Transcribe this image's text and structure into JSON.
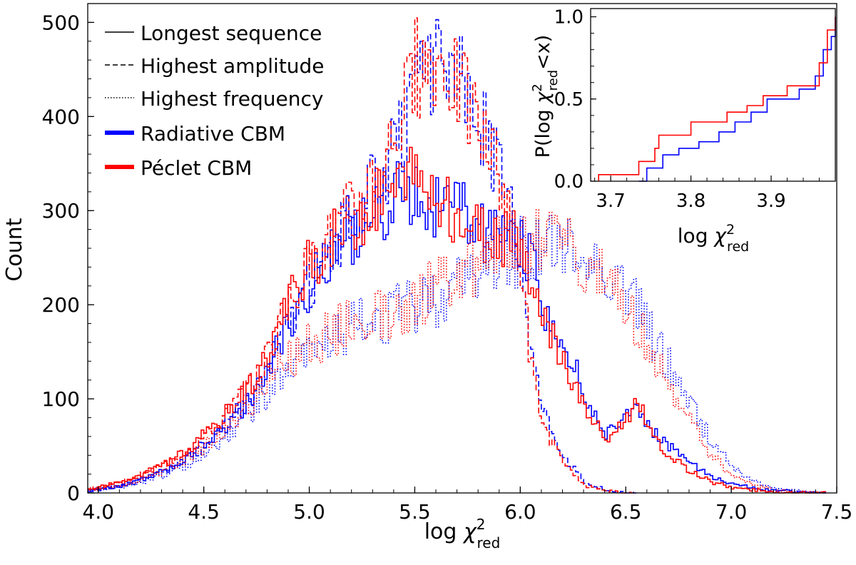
{
  "chart_data": {
    "main": {
      "type": "histogram-step",
      "xlabel": "log χ²_red",
      "xlabel_base": "log ",
      "xlabel_chi": "χ",
      "xlabel_sup": "2",
      "xlabel_sub": "red",
      "ylabel": "Count",
      "xlim": [
        3.95,
        7.5
      ],
      "ylim": [
        0,
        520
      ],
      "xticks": [
        "4.0",
        "4.5",
        "5.0",
        "5.5",
        "6.0",
        "6.5",
        "7.0",
        "7.5"
      ],
      "xtick_values": [
        4.0,
        4.5,
        5.0,
        5.5,
        6.0,
        6.5,
        7.0,
        7.5
      ],
      "yticks": [
        "0",
        "100",
        "200",
        "300",
        "400",
        "500"
      ],
      "ytick_values": [
        0,
        100,
        200,
        300,
        400,
        500
      ],
      "legend": {
        "placement": "top-left",
        "entries": [
          {
            "label": "Longest sequence",
            "style": "solid",
            "color": "#000000"
          },
          {
            "label": "Highest amplitude",
            "style": "dashed",
            "color": "#000000"
          },
          {
            "label": "Highest frequency",
            "style": "dotted",
            "color": "#000000"
          },
          {
            "label": "Radiative CBM",
            "style": "thick",
            "color": "#0000ff"
          },
          {
            "label": "Péclet CBM",
            "style": "thick",
            "color": "#ff0000"
          }
        ]
      },
      "series": [
        {
          "name": "Longest sequence – Radiative CBM",
          "color": "#0000ff",
          "style": "solid",
          "x": [
            3.95,
            4.15,
            4.35,
            4.55,
            4.75,
            4.95,
            5.1,
            5.25,
            5.4,
            5.5,
            5.6,
            5.7,
            5.8,
            5.9,
            6.0,
            6.05,
            6.1,
            6.2,
            6.3,
            6.4,
            6.5,
            6.55,
            6.6,
            6.7,
            6.8,
            6.9,
            7.0,
            7.1,
            7.2,
            7.3,
            7.4
          ],
          "y": [
            2,
            10,
            28,
            60,
            110,
            205,
            250,
            285,
            315,
            320,
            305,
            300,
            295,
            280,
            270,
            240,
            200,
            160,
            105,
            60,
            85,
            95,
            70,
            50,
            30,
            18,
            10,
            5,
            3,
            1,
            0
          ]
        },
        {
          "name": "Longest sequence – Péclet CBM",
          "color": "#ff0000",
          "style": "solid",
          "x": [
            3.95,
            4.15,
            4.35,
            4.55,
            4.75,
            4.95,
            5.1,
            5.25,
            5.4,
            5.5,
            5.6,
            5.7,
            5.8,
            5.9,
            6.0,
            6.05,
            6.1,
            6.2,
            6.3,
            6.4,
            6.5,
            6.55,
            6.6,
            6.7,
            6.8,
            6.9,
            7.0,
            7.1,
            7.2,
            7.3,
            7.4
          ],
          "y": [
            4,
            14,
            35,
            70,
            125,
            230,
            270,
            300,
            325,
            330,
            315,
            290,
            280,
            270,
            265,
            230,
            185,
            140,
            90,
            55,
            80,
            100,
            65,
            40,
            22,
            12,
            6,
            3,
            1,
            0,
            0
          ]
        },
        {
          "name": "Highest amplitude – Radiative CBM",
          "color": "#0000ff",
          "style": "dashed",
          "x": [
            3.95,
            4.15,
            4.35,
            4.55,
            4.75,
            4.95,
            5.1,
            5.25,
            5.4,
            5.5,
            5.6,
            5.65,
            5.7,
            5.8,
            5.9,
            5.95,
            6.0,
            6.05,
            6.1,
            6.2,
            6.3,
            6.4,
            6.5
          ],
          "y": [
            2,
            10,
            28,
            60,
            112,
            205,
            260,
            310,
            360,
            420,
            455,
            460,
            440,
            400,
            340,
            290,
            250,
            150,
            90,
            40,
            12,
            3,
            0
          ]
        },
        {
          "name": "Highest amplitude – Péclet CBM",
          "color": "#ff0000",
          "style": "dashed",
          "x": [
            3.95,
            4.15,
            4.35,
            4.55,
            4.75,
            4.95,
            5.1,
            5.25,
            5.4,
            5.5,
            5.6,
            5.65,
            5.7,
            5.8,
            5.9,
            5.95,
            6.0,
            6.05,
            6.1,
            6.2,
            6.3,
            6.4,
            6.5
          ],
          "y": [
            4,
            14,
            35,
            70,
            125,
            225,
            275,
            320,
            380,
            450,
            465,
            455,
            430,
            390,
            330,
            280,
            240,
            130,
            75,
            30,
            8,
            2,
            0
          ]
        },
        {
          "name": "Highest frequency – Radiative CBM",
          "color": "#0000ff",
          "style": "dotted",
          "x": [
            3.95,
            4.15,
            4.35,
            4.55,
            4.75,
            4.95,
            5.1,
            5.25,
            5.4,
            5.5,
            5.6,
            5.7,
            5.8,
            5.9,
            6.0,
            6.1,
            6.2,
            6.3,
            6.4,
            6.5,
            6.6,
            6.7,
            6.8,
            6.9,
            7.0,
            7.1,
            7.2,
            7.3,
            7.4
          ],
          "y": [
            2,
            8,
            22,
            50,
            95,
            140,
            165,
            180,
            190,
            200,
            210,
            220,
            240,
            255,
            262,
            262,
            255,
            250,
            240,
            215,
            175,
            135,
            95,
            55,
            28,
            12,
            5,
            2,
            0
          ]
        },
        {
          "name": "Highest frequency – Péclet CBM",
          "color": "#ff0000",
          "style": "dotted",
          "x": [
            3.95,
            4.15,
            4.35,
            4.55,
            4.75,
            4.95,
            5.1,
            5.25,
            5.4,
            5.5,
            5.6,
            5.7,
            5.8,
            5.9,
            6.0,
            6.1,
            6.2,
            6.3,
            6.4,
            6.5,
            6.6,
            6.7,
            6.8,
            6.9,
            7.0,
            7.1,
            7.2,
            7.3,
            7.4
          ],
          "y": [
            3,
            10,
            28,
            58,
            105,
            155,
            170,
            185,
            195,
            205,
            220,
            230,
            250,
            265,
            270,
            270,
            262,
            255,
            235,
            200,
            160,
            115,
            75,
            40,
            18,
            8,
            3,
            1,
            0
          ]
        }
      ]
    },
    "inset": {
      "type": "cumulative-step",
      "xlabel": "log χ²_red",
      "xlabel_base": "log ",
      "xlabel_chi": "χ",
      "xlabel_sup": "2",
      "xlabel_sub": "red",
      "ylabel": "P(log χ²_red<x)",
      "ylabel_pre": "P(log ",
      "ylabel_chi": "χ",
      "ylabel_sup": "2",
      "ylabel_sub": "red",
      "ylabel_post": "<x)",
      "xlim": [
        3.675,
        3.98
      ],
      "ylim": [
        0,
        1.05
      ],
      "xticks": [
        "3.7",
        "3.8",
        "3.9"
      ],
      "xtick_values": [
        3.7,
        3.8,
        3.9
      ],
      "yticks": [
        "0.0",
        "0.5",
        "1.0"
      ],
      "ytick_values": [
        0.0,
        0.5,
        1.0
      ],
      "series": [
        {
          "name": "Radiative CBM",
          "color": "#0000ff",
          "x": [
            3.735,
            3.745,
            3.765,
            3.785,
            3.81,
            3.835,
            3.855,
            3.875,
            3.895,
            3.91,
            3.935,
            3.955,
            3.965,
            3.975,
            3.98
          ],
          "y": [
            0.0,
            0.08,
            0.16,
            0.2,
            0.24,
            0.3,
            0.36,
            0.42,
            0.5,
            0.5,
            0.56,
            0.64,
            0.8,
            0.88,
            1.0
          ]
        },
        {
          "name": "Péclet CBM",
          "color": "#ff0000",
          "x": [
            3.685,
            3.735,
            3.755,
            3.76,
            3.8,
            3.82,
            3.845,
            3.87,
            3.89,
            3.92,
            3.935,
            3.96,
            3.97,
            3.98
          ],
          "y": [
            0.04,
            0.12,
            0.2,
            0.28,
            0.36,
            0.36,
            0.42,
            0.46,
            0.52,
            0.58,
            0.58,
            0.72,
            0.92,
            1.0
          ]
        }
      ]
    }
  }
}
